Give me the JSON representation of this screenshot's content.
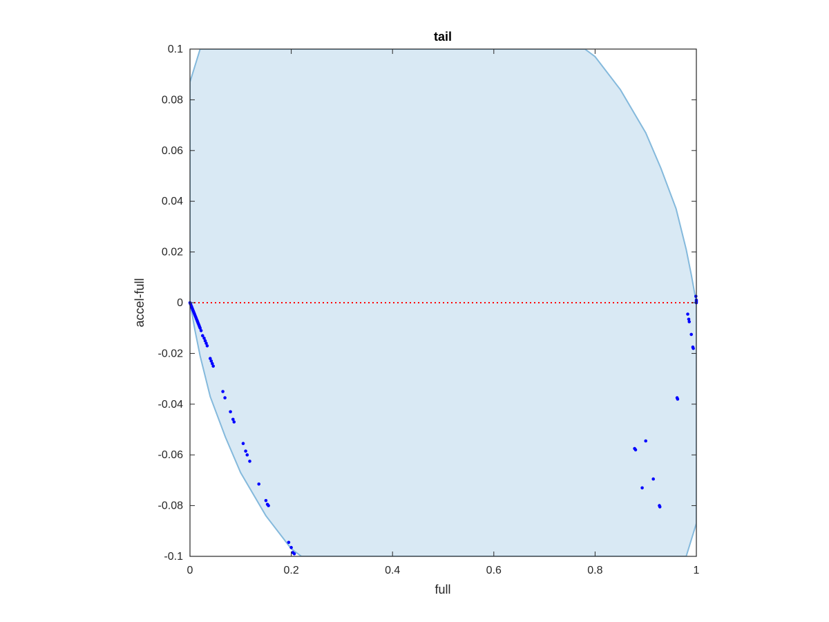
{
  "chart_data": {
    "type": "scatter",
    "title": "tail",
    "xlabel": "full",
    "ylabel": "accel-full",
    "xlim": [
      0,
      1
    ],
    "ylim": [
      -0.1,
      0.1
    ],
    "grid": false,
    "legend": "none",
    "x_ticks": [
      0,
      0.2,
      0.4,
      0.6,
      0.8,
      1
    ],
    "x_tick_labels": [
      "0",
      "0.2",
      "0.4",
      "0.6",
      "0.8",
      "1"
    ],
    "y_ticks": [
      0.1,
      0.08,
      0.06,
      0.04,
      0.02,
      0,
      -0.02,
      -0.04,
      -0.06,
      -0.08,
      -0.1
    ],
    "y_tick_labels": [
      "0.1",
      "0.08",
      "0.06",
      "0.04",
      "0.02",
      "0",
      "-0.02",
      "-0.04",
      "-0.06",
      "-0.08",
      "-0.1"
    ],
    "region": {
      "boundary": [
        [
          0,
          0.087
        ],
        [
          0.02,
          0.1
        ],
        [
          0.78,
          0.1
        ],
        [
          0.8,
          0.097
        ],
        [
          0.85,
          0.084
        ],
        [
          0.9,
          0.067
        ],
        [
          0.93,
          0.053
        ],
        [
          0.96,
          0.037
        ],
        [
          0.98,
          0.021
        ],
        [
          0.99,
          0.011
        ],
        [
          1.0,
          0.0
        ],
        [
          1.0,
          -0.087
        ],
        [
          0.98,
          -0.1
        ],
        [
          0.22,
          -0.1
        ],
        [
          0.2,
          -0.097
        ],
        [
          0.15,
          -0.084
        ],
        [
          0.1,
          -0.067
        ],
        [
          0.07,
          -0.053
        ],
        [
          0.04,
          -0.037
        ],
        [
          0.02,
          -0.021
        ],
        [
          0.01,
          -0.011
        ],
        [
          0,
          0
        ]
      ],
      "fill": "#d9e9f4",
      "stroke": "#84b9dc"
    },
    "reference_line": {
      "y": 0,
      "color": "#ff0000",
      "style": "dotted"
    },
    "series": [
      {
        "color": "#0000ff",
        "points": [
          [
            0.0,
            0.0
          ],
          [
            0.001,
            -0.0005
          ],
          [
            0.002,
            -0.001
          ],
          [
            0.003,
            -0.0015
          ],
          [
            0.004,
            -0.002
          ],
          [
            0.005,
            -0.0025
          ],
          [
            0.006,
            -0.003
          ],
          [
            0.007,
            -0.0035
          ],
          [
            0.008,
            -0.004
          ],
          [
            0.009,
            -0.0045
          ],
          [
            0.01,
            -0.005
          ],
          [
            0.011,
            -0.0055
          ],
          [
            0.012,
            -0.006
          ],
          [
            0.013,
            -0.0065
          ],
          [
            0.014,
            -0.007
          ],
          [
            0.015,
            -0.0075
          ],
          [
            0.016,
            -0.008
          ],
          [
            0.017,
            -0.0085
          ],
          [
            0.018,
            -0.009
          ],
          [
            0.019,
            -0.0095
          ],
          [
            0.02,
            -0.01
          ],
          [
            0.022,
            -0.011
          ],
          [
            0.025,
            -0.013
          ],
          [
            0.028,
            -0.014
          ],
          [
            0.03,
            -0.015
          ],
          [
            0.032,
            -0.016
          ],
          [
            0.034,
            -0.017
          ],
          [
            0.04,
            -0.022
          ],
          [
            0.042,
            -0.023
          ],
          [
            0.044,
            -0.024
          ],
          [
            0.046,
            -0.025
          ],
          [
            0.065,
            -0.035
          ],
          [
            0.069,
            -0.0375
          ],
          [
            0.08,
            -0.043
          ],
          [
            0.085,
            -0.046
          ],
          [
            0.087,
            -0.047
          ],
          [
            0.105,
            -0.0555
          ],
          [
            0.11,
            -0.0585
          ],
          [
            0.113,
            -0.06
          ],
          [
            0.118,
            -0.0625
          ],
          [
            0.136,
            -0.0715
          ],
          [
            0.15,
            -0.078
          ],
          [
            0.153,
            -0.0795
          ],
          [
            0.155,
            -0.08
          ],
          [
            0.195,
            -0.0945
          ],
          [
            0.2,
            -0.0965
          ],
          [
            0.203,
            -0.0985
          ],
          [
            0.206,
            -0.099
          ],
          [
            0.999,
            0.0025
          ],
          [
            1.0,
            0.001
          ],
          [
            1.0,
            0.0005
          ],
          [
            1.0,
            0.0
          ],
          [
            0.983,
            -0.0045
          ],
          [
            0.985,
            -0.0065
          ],
          [
            0.986,
            -0.0075
          ],
          [
            0.99,
            -0.0125
          ],
          [
            0.993,
            -0.0175
          ],
          [
            0.994,
            -0.018
          ],
          [
            0.962,
            -0.0375
          ],
          [
            0.963,
            -0.038
          ],
          [
            0.878,
            -0.0575
          ],
          [
            0.88,
            -0.058
          ],
          [
            0.9,
            -0.0545
          ],
          [
            0.893,
            -0.073
          ],
          [
            0.915,
            -0.0695
          ],
          [
            0.927,
            -0.08
          ],
          [
            0.928,
            -0.0805
          ]
        ]
      }
    ]
  }
}
